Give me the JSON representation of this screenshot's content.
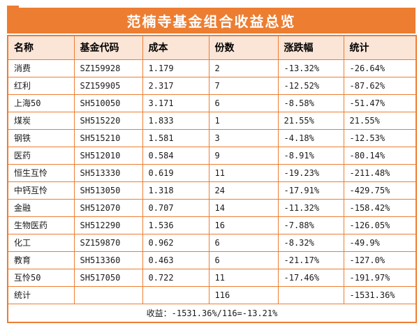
{
  "chart_data": {
    "type": "table",
    "title": "范楠寺基金组合收益总览",
    "columns": [
      "名称",
      "基金代码",
      "成本",
      "份数",
      "涨跌幅",
      "统计"
    ],
    "rows": [
      [
        "消费",
        "SZ159928",
        "1.179",
        "2",
        "-13.32%",
        "-26.64%"
      ],
      [
        "红利",
        "SZ159905",
        "2.317",
        "7",
        "-12.52%",
        "-87.62%"
      ],
      [
        "上海50",
        "SH510050",
        "3.171",
        "6",
        "-8.58%",
        "-51.47%"
      ],
      [
        "煤炭",
        "SH515220",
        "1.833",
        "1",
        "21.55%",
        "21.55%"
      ],
      [
        "钢铁",
        "SH515210",
        "1.581",
        "3",
        "-4.18%",
        "-12.53%"
      ],
      [
        "医药",
        "SH512010",
        "0.584",
        "9",
        "-8.91%",
        "-80.14%"
      ],
      [
        "恒生互怜",
        "SH513330",
        "0.619",
        "11",
        "-19.23%",
        "-211.48%"
      ],
      [
        "中钙互怜",
        "SH513050",
        "1.318",
        "24",
        "-17.91%",
        "-429.75%"
      ],
      [
        "金融",
        "SH512070",
        "0.707",
        "14",
        "-11.32%",
        "-158.42%"
      ],
      [
        "生物医药",
        "SH512290",
        "1.536",
        "16",
        "-7.88%",
        "-126.05%"
      ],
      [
        "化工",
        "SZ159870",
        "0.962",
        "6",
        "-8.32%",
        "-49.9%"
      ],
      [
        "教育",
        "SH513360",
        "0.463",
        "6",
        "-21.17%",
        "-127.0%"
      ],
      [
        "互怜50",
        "SH517050",
        "0.722",
        "11",
        "-17.46%",
        "-191.97%"
      ],
      [
        "统计",
        "",
        "",
        "116",
        "",
        "-1531.36%"
      ]
    ],
    "summary_row": "收益：-1531.36%/116=-13.21%"
  },
  "colors": {
    "accent_orange": "#ED7D31",
    "header_bg": "#FBE5D6",
    "row_bg": "#FFFFFF",
    "title_text": "#FFFFFF",
    "body_text": "#000000"
  }
}
